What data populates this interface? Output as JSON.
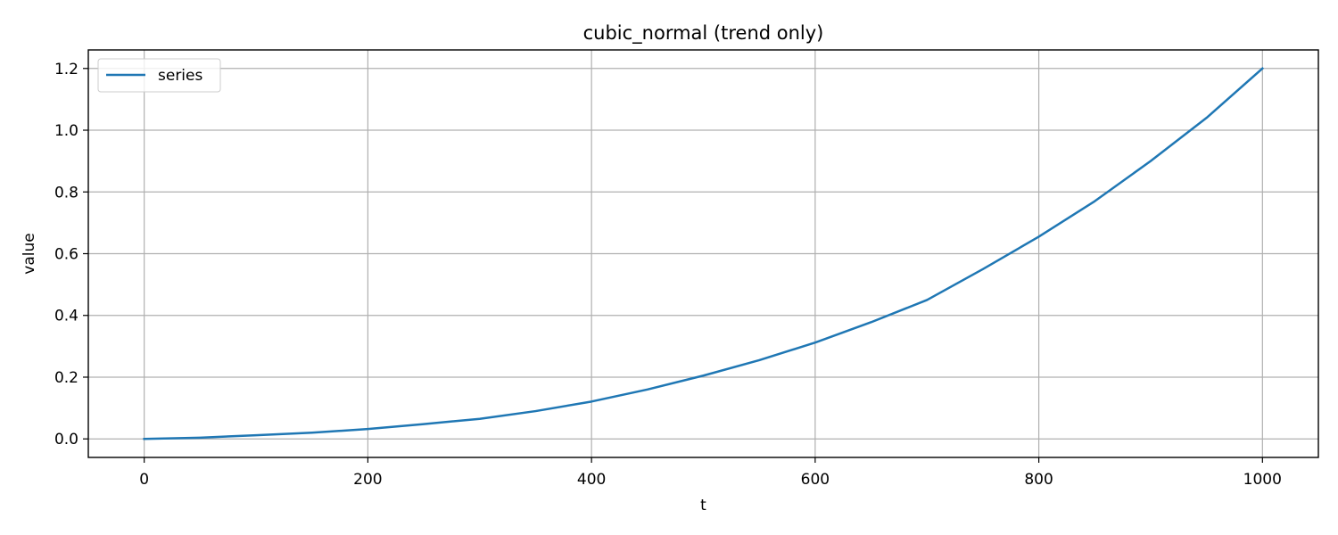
{
  "chart_data": {
    "type": "line",
    "title": "cubic_normal (trend only)",
    "xlabel": "t",
    "ylabel": "value",
    "xlim": [
      -50,
      1050
    ],
    "ylim": [
      -0.06,
      1.26
    ],
    "xticks": [
      0,
      200,
      400,
      600,
      800,
      1000
    ],
    "xtick_labels": [
      "0",
      "200",
      "400",
      "600",
      "800",
      "1000"
    ],
    "yticks": [
      0.0,
      0.2,
      0.4,
      0.6,
      0.8,
      1.0,
      1.2
    ],
    "ytick_labels": [
      "0.0",
      "0.2",
      "0.4",
      "0.6",
      "0.8",
      "1.0",
      "1.2"
    ],
    "grid": true,
    "legend_position": "top-left",
    "series": [
      {
        "name": "series",
        "color": "#1f77b4",
        "x": [
          0,
          50,
          100,
          150,
          200,
          250,
          300,
          350,
          400,
          450,
          500,
          550,
          600,
          650,
          700,
          750,
          800,
          850,
          900,
          950,
          1000
        ],
        "y": [
          0.0,
          0.004,
          0.012,
          0.02,
          0.032,
          0.048,
          0.065,
          0.09,
          0.121,
          0.16,
          0.205,
          0.255,
          0.312,
          0.378,
          0.45,
          0.55,
          0.655,
          0.77,
          0.9,
          1.04,
          1.2
        ]
      }
    ]
  }
}
